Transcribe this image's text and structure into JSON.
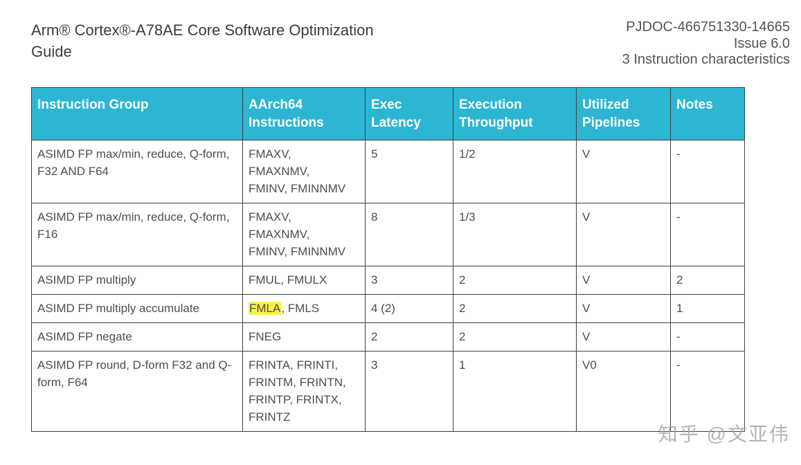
{
  "header": {
    "title_line1": "Arm® Cortex®-A78AE Core  Software Optimization",
    "title_line2": "Guide",
    "doc_id": "PJDOC-466751330-14665",
    "issue": "Issue 6.0",
    "section": "3 Instruction characteristics"
  },
  "table": {
    "columns": [
      "Instruction Group",
      "AArch64 Instructions",
      "Exec Latency",
      "Execution Throughput",
      "Utilized Pipelines",
      "Notes"
    ],
    "rows": [
      {
        "cells": [
          "ASIMD FP max/min, reduce, Q-form, F32 AND F64",
          "FMAXV, FMAXNMV, FMINV, FMINNMV",
          "5",
          "1/2",
          "V",
          "-"
        ]
      },
      {
        "cells": [
          "ASIMD FP max/min, reduce, Q-form, F16",
          "FMAXV, FMAXNMV, FMINV, FMINNMV",
          "8",
          "1/3",
          "V",
          "-"
        ]
      },
      {
        "cells": [
          "ASIMD FP multiply",
          "FMUL, FMULX",
          "3",
          "2",
          "V",
          "2"
        ]
      },
      {
        "cells": [
          "ASIMD FP multiply accumulate",
          "FMLA, FMLS",
          "4 (2)",
          "2",
          "V",
          "1"
        ],
        "highlight": "FMLA"
      },
      {
        "cells": [
          "ASIMD FP negate",
          "FNEG",
          "2",
          "2",
          "V",
          "-"
        ]
      },
      {
        "cells": [
          "ASIMD FP round, D-form F32 and Q-form, F64",
          "FRINTA, FRINTI, FRINTM, FRINTN, FRINTP, FRINTX, FRINTZ",
          "3",
          "1",
          "V0",
          "-"
        ]
      }
    ]
  },
  "watermark": {
    "text": "知乎 @文亚伟"
  },
  "colors": {
    "table_header_bg": "#2cb6d3",
    "table_header_text": "#ffffff",
    "highlight": "#f9f344",
    "border": "#3f3f3f",
    "body_text": "#4d4d4d"
  }
}
